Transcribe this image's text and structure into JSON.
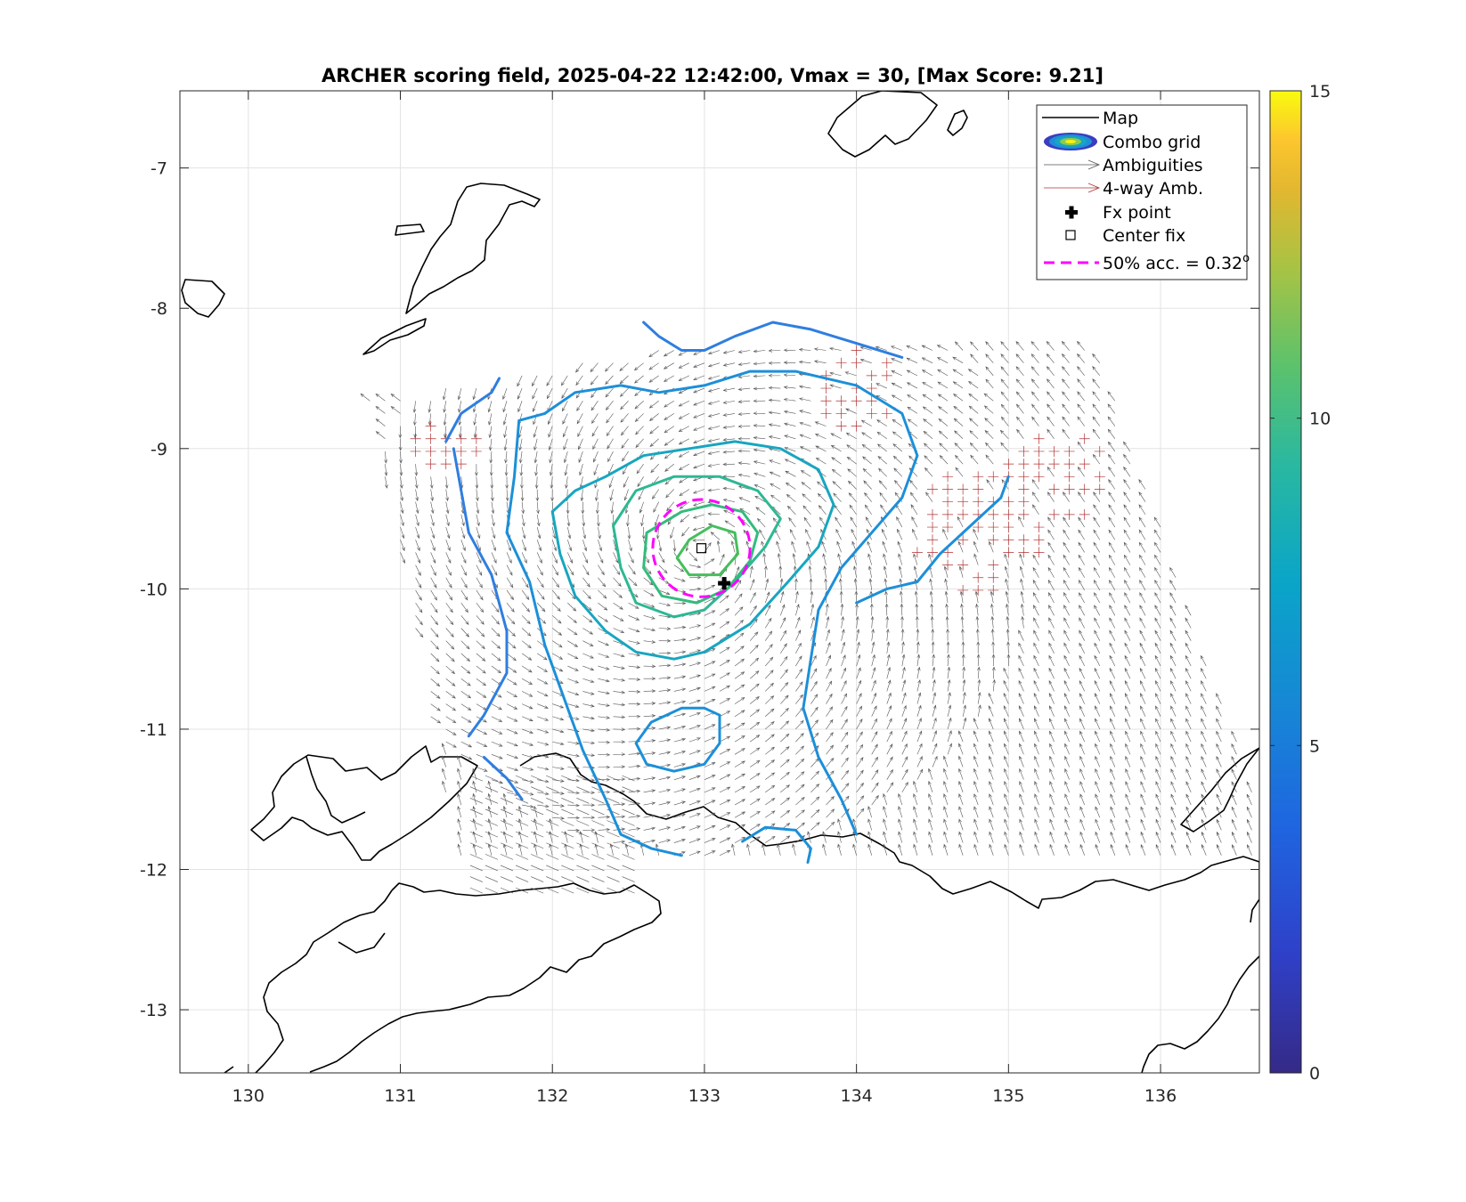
{
  "chart_data": {
    "type": "contour-map",
    "title": "ARCHER scoring field, 2025-04-22 12:42:00, Vmax = 30, [Max Score: 9.21]",
    "xlim": [
      129.55,
      136.65
    ],
    "ylim": [
      -13.45,
      -6.45
    ],
    "x_ticks": [
      130,
      131,
      132,
      133,
      134,
      135,
      136
    ],
    "x_tick_labels": [
      "130",
      "131",
      "132",
      "133",
      "134",
      "135",
      "136"
    ],
    "y_ticks": [
      -7,
      -8,
      -9,
      -10,
      -11,
      -12,
      -13
    ],
    "y_tick_labels": [
      "-7",
      "-8",
      "-9",
      "-10",
      "-11",
      "-12",
      "-13"
    ],
    "grid": true,
    "colorbar": {
      "range": [
        0,
        15
      ],
      "ticks": [
        0,
        5,
        10,
        15
      ],
      "tick_labels": [
        "0",
        "5",
        "10",
        "15"
      ],
      "colormap": "parula"
    },
    "legend": {
      "position": "top-right",
      "entries": [
        {
          "label": "Map",
          "color": "#000000"
        },
        {
          "label": "Combo grid",
          "color": "#3b3dbf"
        },
        {
          "label": "Ambiguities",
          "color": "#555555"
        },
        {
          "label": "4-way Amb.",
          "color": "#b03030"
        },
        {
          "label": "Fx point",
          "color": "#000000"
        },
        {
          "label": "Center fix",
          "color": "#000000"
        },
        {
          "label": "50% acc. = 0.32",
          "label_sup": "o",
          "color": "#ff00ff"
        }
      ]
    },
    "fx_point": {
      "lon": 133.13,
      "lat": -9.96
    },
    "center_fix": {
      "lon": 132.98,
      "lat": -9.71
    },
    "accuracy_circle": {
      "lon": 132.98,
      "lat": -9.71,
      "radius_deg": 0.32
    },
    "contours": [
      {
        "level": 5.0,
        "color": "#2f7ee0",
        "points": [
          [
            132.6,
            -8.1
          ],
          [
            132.7,
            -8.2
          ],
          [
            132.85,
            -8.3
          ],
          [
            133.0,
            -8.3
          ],
          [
            133.2,
            -8.2
          ],
          [
            133.45,
            -8.1
          ],
          [
            133.7,
            -8.15
          ],
          [
            134.0,
            -8.25
          ],
          [
            134.3,
            -8.35
          ]
        ]
      },
      {
        "level": 5.0,
        "color": "#2f7ee0",
        "points": [
          [
            131.35,
            -9.0
          ],
          [
            131.4,
            -9.3
          ],
          [
            131.45,
            -9.6
          ],
          [
            131.6,
            -9.9
          ],
          [
            131.7,
            -10.3
          ],
          [
            131.7,
            -10.6
          ],
          [
            131.55,
            -10.9
          ],
          [
            131.45,
            -11.05
          ]
        ]
      },
      {
        "level": 5.0,
        "color": "#2f7ee0",
        "points": [
          [
            131.55,
            -11.2
          ],
          [
            131.7,
            -11.35
          ],
          [
            131.8,
            -11.5
          ]
        ]
      },
      {
        "level": 5.0,
        "color": "#2f7ee0",
        "points": [
          [
            131.3,
            -8.95
          ],
          [
            131.4,
            -8.75
          ],
          [
            131.6,
            -8.6
          ],
          [
            131.65,
            -8.5
          ]
        ]
      },
      {
        "level": 6.0,
        "color": "#1c8fd9",
        "points": [
          [
            131.95,
            -8.75
          ],
          [
            131.78,
            -8.8
          ],
          [
            131.75,
            -9.2
          ],
          [
            131.7,
            -9.6
          ],
          [
            131.85,
            -9.95
          ],
          [
            131.95,
            -10.4
          ],
          [
            132.1,
            -10.85
          ],
          [
            132.2,
            -11.15
          ],
          [
            132.35,
            -11.5
          ],
          [
            132.45,
            -11.75
          ],
          [
            132.65,
            -11.85
          ],
          [
            132.85,
            -11.9
          ]
        ]
      },
      {
        "level": 6.0,
        "color": "#1c8fd9",
        "points": [
          [
            131.95,
            -8.75
          ],
          [
            132.15,
            -8.6
          ],
          [
            132.45,
            -8.55
          ],
          [
            132.7,
            -8.6
          ],
          [
            133.0,
            -8.55
          ],
          [
            133.3,
            -8.45
          ],
          [
            133.6,
            -8.45
          ],
          [
            134.0,
            -8.55
          ],
          [
            134.3,
            -8.75
          ],
          [
            134.4,
            -9.05
          ],
          [
            134.3,
            -9.35
          ],
          [
            134.1,
            -9.6
          ],
          [
            133.9,
            -9.85
          ],
          [
            133.75,
            -10.15
          ],
          [
            133.7,
            -10.5
          ],
          [
            133.65,
            -10.85
          ],
          [
            133.75,
            -11.2
          ],
          [
            133.9,
            -11.5
          ],
          [
            134.0,
            -11.75
          ]
        ]
      },
      {
        "level": 6.0,
        "color": "#1c8fd9",
        "points": [
          [
            133.1,
            -10.9
          ],
          [
            133.0,
            -10.85
          ],
          [
            132.85,
            -10.85
          ],
          [
            132.65,
            -10.95
          ],
          [
            132.55,
            -11.1
          ],
          [
            132.62,
            -11.25
          ],
          [
            132.8,
            -11.3
          ],
          [
            133.0,
            -11.25
          ],
          [
            133.1,
            -11.1
          ],
          [
            133.1,
            -10.9
          ]
        ]
      },
      {
        "level": 6.0,
        "color": "#1c8fd9",
        "points": [
          [
            133.25,
            -11.8
          ],
          [
            133.4,
            -11.7
          ],
          [
            133.6,
            -11.72
          ],
          [
            133.7,
            -11.85
          ],
          [
            133.68,
            -11.95
          ]
        ]
      },
      {
        "level": 6.0,
        "color": "#1c8fd9",
        "points": [
          [
            134.0,
            -10.1
          ],
          [
            134.2,
            -10.0
          ],
          [
            134.4,
            -9.95
          ],
          [
            134.55,
            -9.75
          ],
          [
            134.75,
            -9.55
          ],
          [
            134.95,
            -9.35
          ],
          [
            135.0,
            -9.2
          ]
        ]
      },
      {
        "level": 7.0,
        "color": "#17a6c0",
        "points": [
          [
            132.35,
            -9.2
          ],
          [
            132.6,
            -9.05
          ],
          [
            132.9,
            -9.0
          ],
          [
            133.2,
            -8.95
          ],
          [
            133.5,
            -9.0
          ],
          [
            133.75,
            -9.15
          ],
          [
            133.85,
            -9.4
          ],
          [
            133.75,
            -9.7
          ],
          [
            133.55,
            -9.95
          ],
          [
            133.3,
            -10.25
          ],
          [
            133.0,
            -10.45
          ],
          [
            132.8,
            -10.5
          ],
          [
            132.55,
            -10.45
          ],
          [
            132.35,
            -10.3
          ],
          [
            132.15,
            -10.05
          ],
          [
            132.05,
            -9.75
          ],
          [
            132.0,
            -9.45
          ],
          [
            132.15,
            -9.3
          ],
          [
            132.35,
            -9.2
          ]
        ]
      },
      {
        "level": 8.0,
        "color": "#2db894",
        "points": [
          [
            132.55,
            -9.3
          ],
          [
            132.8,
            -9.2
          ],
          [
            133.1,
            -9.2
          ],
          [
            133.35,
            -9.3
          ],
          [
            133.5,
            -9.5
          ],
          [
            133.4,
            -9.7
          ],
          [
            133.2,
            -9.95
          ],
          [
            133.0,
            -10.15
          ],
          [
            132.8,
            -10.2
          ],
          [
            132.55,
            -10.1
          ],
          [
            132.45,
            -9.85
          ],
          [
            132.4,
            -9.55
          ],
          [
            132.55,
            -9.3
          ]
        ]
      },
      {
        "level": 8.5,
        "color": "#34bb7e",
        "points": [
          [
            132.85,
            -9.45
          ],
          [
            133.05,
            -9.4
          ],
          [
            133.25,
            -9.45
          ],
          [
            133.35,
            -9.6
          ],
          [
            133.3,
            -9.8
          ],
          [
            133.15,
            -10.0
          ],
          [
            132.95,
            -10.1
          ],
          [
            132.72,
            -10.05
          ],
          [
            132.6,
            -9.85
          ],
          [
            132.62,
            -9.6
          ],
          [
            132.85,
            -9.45
          ]
        ]
      },
      {
        "level": 9.0,
        "color": "#45bf5c",
        "points": [
          [
            132.9,
            -9.65
          ],
          [
            133.05,
            -9.55
          ],
          [
            133.2,
            -9.6
          ],
          [
            133.22,
            -9.75
          ],
          [
            133.1,
            -9.9
          ],
          [
            132.9,
            -9.9
          ],
          [
            132.82,
            -9.78
          ],
          [
            132.9,
            -9.65
          ]
        ]
      }
    ]
  }
}
